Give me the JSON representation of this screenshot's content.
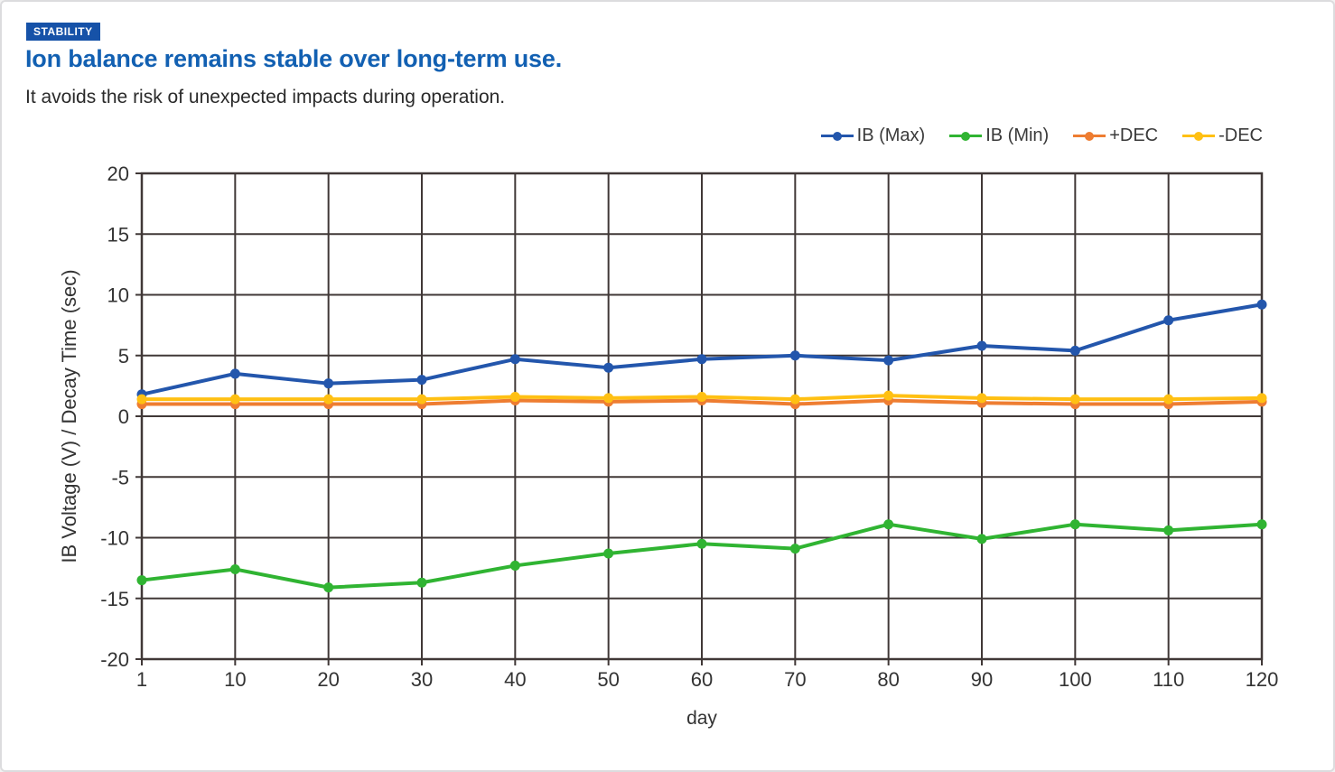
{
  "page": {
    "badge": "STABILITY",
    "title": "Ion balance remains stable over long-term use.",
    "subtitle": "It avoids the risk of unexpected impacts during operation.",
    "colors": {
      "badge_bg": "#1652a8",
      "title_text": "#1260b2",
      "grid": "#403837",
      "tick_text": "#333333",
      "page_border": "#dcdcde"
    }
  },
  "chart_data": {
    "type": "line",
    "x": [
      1,
      10,
      20,
      30,
      40,
      50,
      60,
      70,
      80,
      90,
      100,
      110,
      120
    ],
    "xlabel": "day",
    "ylabel": "IB Voltage (V) / Decay Time (sec)",
    "ylim": [
      -20,
      20
    ],
    "yticks": [
      20,
      15,
      10,
      5,
      0,
      -5,
      -10,
      -15,
      -20
    ],
    "grid": true,
    "legend_position": "top-right",
    "series": [
      {
        "name": "IB (Max)",
        "color": "#2356ac",
        "values": [
          1.8,
          3.5,
          2.7,
          3.0,
          4.7,
          4.0,
          4.7,
          5.0,
          4.6,
          5.8,
          5.4,
          7.9,
          9.2
        ]
      },
      {
        "name": "IB (Min)",
        "color": "#30b432",
        "values": [
          -13.5,
          -12.6,
          -14.1,
          -13.7,
          -12.3,
          -11.3,
          -10.5,
          -10.9,
          -8.9,
          -10.1,
          -8.9,
          -9.4,
          -8.9
        ]
      },
      {
        "name": "+DEC",
        "color": "#ee7d31",
        "values": [
          1.0,
          1.0,
          1.0,
          1.0,
          1.3,
          1.2,
          1.3,
          1.0,
          1.3,
          1.1,
          1.0,
          1.0,
          1.2
        ]
      },
      {
        "name": "-DEC",
        "color": "#ffc013",
        "values": [
          1.4,
          1.4,
          1.4,
          1.4,
          1.6,
          1.5,
          1.6,
          1.4,
          1.7,
          1.5,
          1.4,
          1.4,
          1.5
        ]
      }
    ]
  }
}
